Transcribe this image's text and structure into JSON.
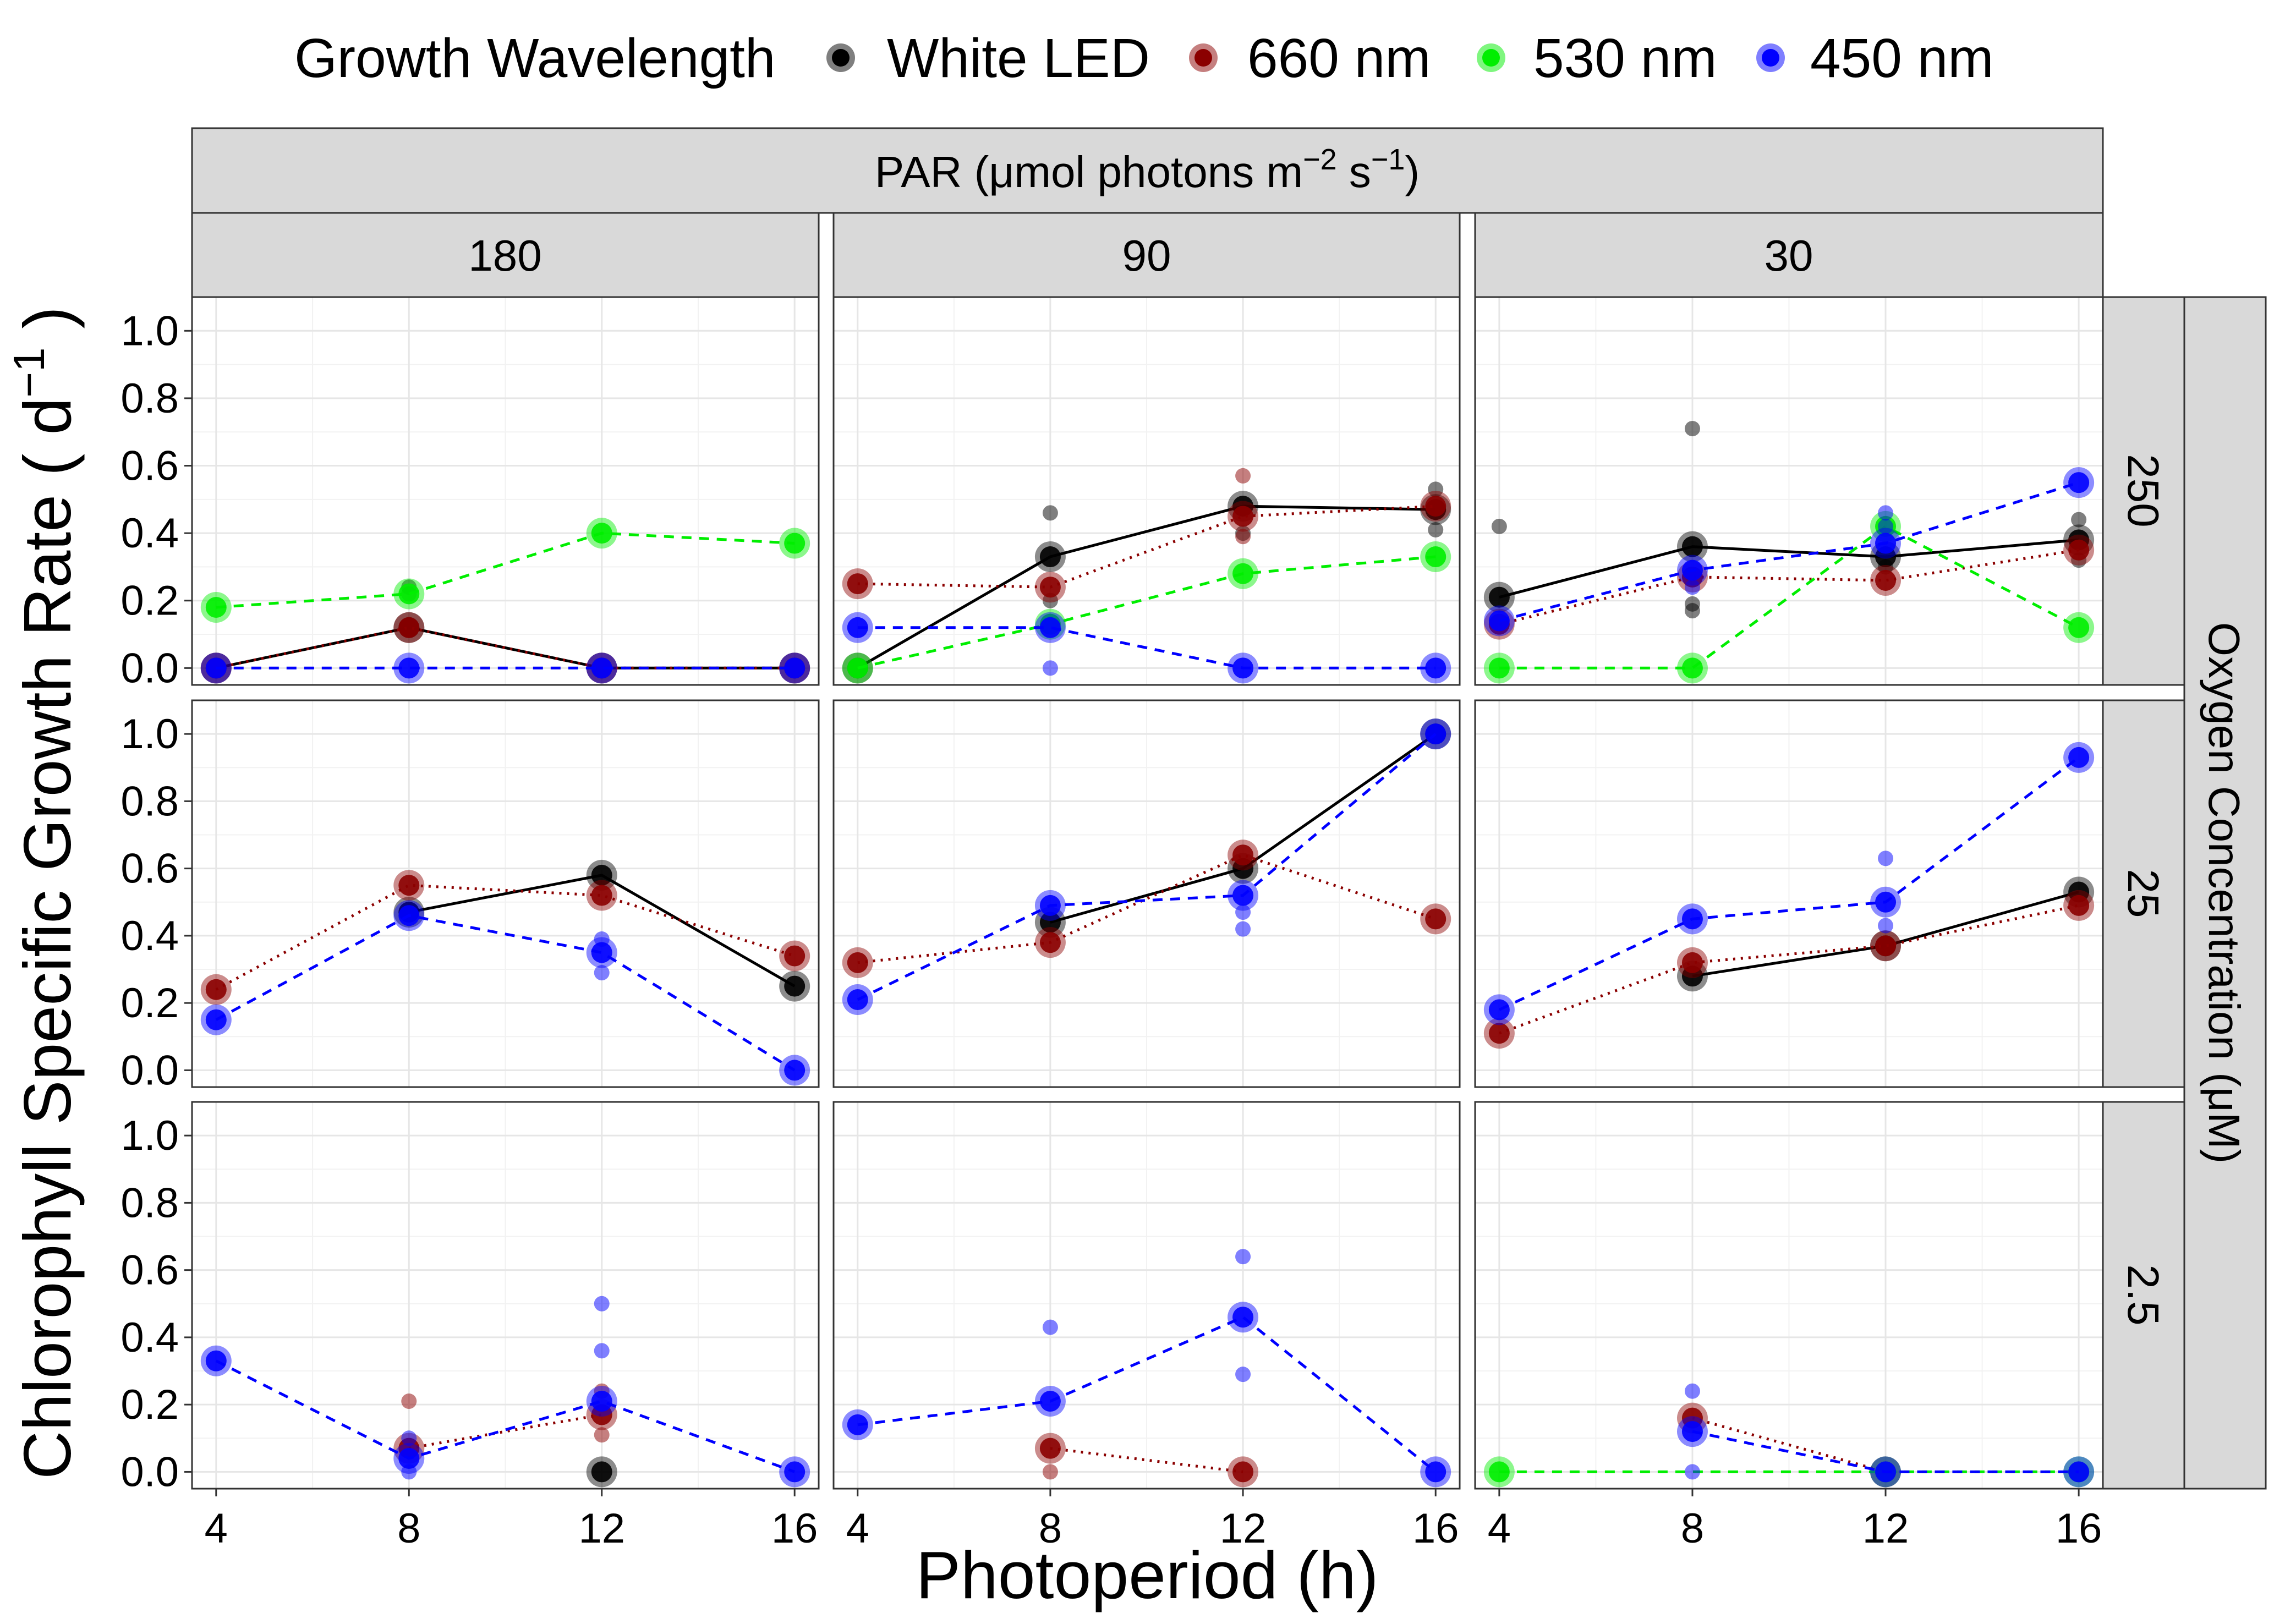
{
  "chart_data": {
    "type": "scatter",
    "subtype": "faceted line-and-point grid",
    "legend": {
      "title": "Growth Wavelength",
      "position": "top",
      "entries": [
        {
          "key": "white",
          "label": "White LED",
          "color": "#000000",
          "linetype": "solid"
        },
        {
          "key": "r660",
          "label": "660 nm",
          "color": "#8B0000",
          "linetype": "dotted"
        },
        {
          "key": "g530",
          "label": "530 nm",
          "color": "#00EE00",
          "linetype": "dashed"
        },
        {
          "key": "b450",
          "label": "450 nm",
          "color": "#0000FF",
          "linetype": "dashed"
        }
      ]
    },
    "column_facet": {
      "title_main": "PAR (μmol photons m",
      "title_sup1": "−2",
      "title_mid": " s",
      "title_sup2": "−1",
      "title_end": ")",
      "labels": [
        "180",
        "90",
        "30"
      ]
    },
    "row_facet": {
      "title": "Oxygen Concentration (μM)",
      "labels": [
        "250",
        "25",
        "2.5"
      ]
    },
    "xlabel": "Photoperiod (h)",
    "ylabel_main": "Chlorophyll Specific Growth Rate   ( d",
    "ylabel_sup": "−1",
    "ylabel_end": " )",
    "x_ticks": [
      "4",
      "8",
      "12",
      "16"
    ],
    "y_ticks": [
      "0.0",
      "0.2",
      "0.4",
      "0.6",
      "0.8",
      "1.0"
    ],
    "xlim": [
      3.5,
      16.5
    ],
    "ylim": [
      -0.05,
      1.1
    ],
    "grid": true,
    "panels": [
      {
        "row": "250",
        "col": "180",
        "series": [
          {
            "key": "white",
            "means": [
              [
                4,
                0.0
              ],
              [
                8,
                0.12
              ],
              [
                12,
                0.0
              ],
              [
                16,
                0.0
              ]
            ],
            "reps": [
              [
                8,
                0.24
              ],
              [
                8,
                0.22
              ]
            ]
          },
          {
            "key": "r660",
            "means": [
              [
                4,
                0.0
              ],
              [
                8,
                0.12
              ],
              [
                12,
                0.0
              ],
              [
                16,
                0.0
              ]
            ],
            "reps": []
          },
          {
            "key": "g530",
            "means": [
              [
                4,
                0.18
              ],
              [
                8,
                0.22
              ],
              [
                12,
                0.4
              ],
              [
                16,
                0.37
              ]
            ],
            "reps": []
          },
          {
            "key": "b450",
            "means": [
              [
                4,
                0.0
              ],
              [
                8,
                0.0
              ],
              [
                12,
                0.0
              ],
              [
                16,
                0.0
              ]
            ],
            "reps": []
          }
        ]
      },
      {
        "row": "250",
        "col": "90",
        "series": [
          {
            "key": "white",
            "means": [
              [
                4,
                0.0
              ],
              [
                8,
                0.33
              ],
              [
                12,
                0.48
              ],
              [
                16,
                0.47
              ]
            ],
            "reps": [
              [
                8,
                0.46
              ],
              [
                8,
                0.2
              ],
              [
                12,
                0.4
              ],
              [
                16,
                0.53
              ],
              [
                16,
                0.41
              ]
            ]
          },
          {
            "key": "r660",
            "means": [
              [
                4,
                0.25
              ],
              [
                8,
                0.24
              ],
              [
                12,
                0.45
              ],
              [
                16,
                0.48
              ]
            ],
            "reps": [
              [
                12,
                0.57
              ],
              [
                12,
                0.39
              ]
            ]
          },
          {
            "key": "g530",
            "means": [
              [
                4,
                0.0
              ],
              [
                8,
                0.13
              ],
              [
                12,
                0.28
              ],
              [
                16,
                0.33
              ]
            ],
            "reps": []
          },
          {
            "key": "b450",
            "means": [
              [
                4,
                0.12
              ],
              [
                8,
                0.12
              ],
              [
                12,
                0.0
              ],
              [
                16,
                0.0
              ]
            ],
            "reps": [
              [
                8,
                0.0
              ]
            ]
          }
        ]
      },
      {
        "row": "250",
        "col": "30",
        "series": [
          {
            "key": "white",
            "means": [
              [
                4,
                0.21
              ],
              [
                8,
                0.36
              ],
              [
                12,
                0.33
              ],
              [
                16,
                0.38
              ]
            ],
            "reps": [
              [
                4,
                0.42
              ],
              [
                8,
                0.71
              ],
              [
                8,
                0.17
              ],
              [
                8,
                0.19
              ],
              [
                12,
                0.3
              ],
              [
                16,
                0.44
              ],
              [
                16,
                0.32
              ]
            ]
          },
          {
            "key": "r660",
            "means": [
              [
                4,
                0.13
              ],
              [
                8,
                0.27
              ],
              [
                12,
                0.26
              ],
              [
                16,
                0.35
              ]
            ],
            "reps": []
          },
          {
            "key": "g530",
            "means": [
              [
                4,
                0.0
              ],
              [
                8,
                0.0
              ],
              [
                12,
                0.42
              ],
              [
                16,
                0.12
              ]
            ],
            "reps": []
          },
          {
            "key": "b450",
            "means": [
              [
                4,
                0.14
              ],
              [
                8,
                0.29
              ],
              [
                12,
                0.37
              ],
              [
                16,
                0.55
              ]
            ],
            "reps": [
              [
                8,
                0.24
              ],
              [
                12,
                0.46
              ],
              [
                12,
                0.42
              ]
            ]
          }
        ]
      },
      {
        "row": "25",
        "col": "180",
        "series": [
          {
            "key": "white",
            "means": [
              [
                8,
                0.47
              ],
              [
                12,
                0.58
              ],
              [
                16,
                0.25
              ]
            ],
            "reps": []
          },
          {
            "key": "r660",
            "means": [
              [
                4,
                0.24
              ],
              [
                8,
                0.55
              ],
              [
                12,
                0.52
              ],
              [
                16,
                0.34
              ]
            ],
            "reps": []
          },
          {
            "key": "b450",
            "means": [
              [
                4,
                0.15
              ],
              [
                8,
                0.46
              ],
              [
                12,
                0.35
              ],
              [
                16,
                0.0
              ]
            ],
            "reps": [
              [
                12,
                0.39
              ],
              [
                12,
                0.29
              ]
            ]
          }
        ]
      },
      {
        "row": "25",
        "col": "90",
        "series": [
          {
            "key": "white",
            "means": [
              [
                8,
                0.44
              ],
              [
                12,
                0.6
              ],
              [
                16,
                1.0
              ]
            ],
            "reps": []
          },
          {
            "key": "r660",
            "means": [
              [
                4,
                0.32
              ],
              [
                8,
                0.38
              ],
              [
                12,
                0.64
              ],
              [
                16,
                0.45
              ]
            ],
            "reps": []
          },
          {
            "key": "b450",
            "means": [
              [
                4,
                0.21
              ],
              [
                8,
                0.49
              ],
              [
                12,
                0.52
              ],
              [
                16,
                1.0
              ]
            ],
            "reps": [
              [
                12,
                0.42
              ],
              [
                12,
                0.47
              ]
            ]
          }
        ]
      },
      {
        "row": "25",
        "col": "30",
        "series": [
          {
            "key": "white",
            "means": [
              [
                8,
                0.28
              ],
              [
                12,
                0.37
              ],
              [
                16,
                0.53
              ]
            ],
            "reps": []
          },
          {
            "key": "r660",
            "means": [
              [
                4,
                0.11
              ],
              [
                8,
                0.32
              ],
              [
                12,
                0.37
              ],
              [
                16,
                0.49
              ]
            ],
            "reps": []
          },
          {
            "key": "b450",
            "means": [
              [
                4,
                0.18
              ],
              [
                8,
                0.45
              ],
              [
                12,
                0.5
              ],
              [
                16,
                0.93
              ]
            ],
            "reps": [
              [
                12,
                0.63
              ],
              [
                12,
                0.43
              ]
            ]
          }
        ]
      },
      {
        "row": "2.5",
        "col": "180",
        "series": [
          {
            "key": "white",
            "means": [
              [
                12,
                0.0
              ]
            ],
            "reps": []
          },
          {
            "key": "r660",
            "means": [
              [
                8,
                0.07
              ],
              [
                12,
                0.17
              ]
            ],
            "reps": [
              [
                8,
                0.21
              ],
              [
                12,
                0.11
              ],
              [
                12,
                0.24
              ]
            ]
          },
          {
            "key": "b450",
            "means": [
              [
                4,
                0.33
              ],
              [
                8,
                0.04
              ],
              [
                12,
                0.21
              ],
              [
                16,
                0.0
              ]
            ],
            "reps": [
              [
                8,
                0.1
              ],
              [
                8,
                0.0
              ],
              [
                12,
                0.5
              ],
              [
                12,
                0.36
              ]
            ]
          }
        ]
      },
      {
        "row": "2.5",
        "col": "90",
        "series": [
          {
            "key": "r660",
            "means": [
              [
                8,
                0.07
              ],
              [
                12,
                0.0
              ]
            ],
            "reps": [
              [
                8,
                0.0
              ]
            ]
          },
          {
            "key": "b450",
            "means": [
              [
                4,
                0.14
              ],
              [
                8,
                0.21
              ],
              [
                12,
                0.46
              ],
              [
                16,
                0.0
              ]
            ],
            "reps": [
              [
                8,
                0.43
              ],
              [
                12,
                0.64
              ],
              [
                12,
                0.29
              ]
            ]
          }
        ]
      },
      {
        "row": "2.5",
        "col": "30",
        "series": [
          {
            "key": "r660",
            "means": [
              [
                8,
                0.16
              ],
              [
                12,
                0.0
              ]
            ],
            "reps": []
          },
          {
            "key": "g530",
            "means": [
              [
                4,
                0.0
              ],
              [
                12,
                0.0
              ],
              [
                16,
                0.0
              ]
            ],
            "reps": []
          },
          {
            "key": "b450",
            "means": [
              [
                8,
                0.12
              ],
              [
                12,
                0.0
              ],
              [
                16,
                0.0
              ]
            ],
            "reps": [
              [
                8,
                0.24
              ],
              [
                8,
                0.0
              ]
            ]
          }
        ]
      }
    ]
  }
}
